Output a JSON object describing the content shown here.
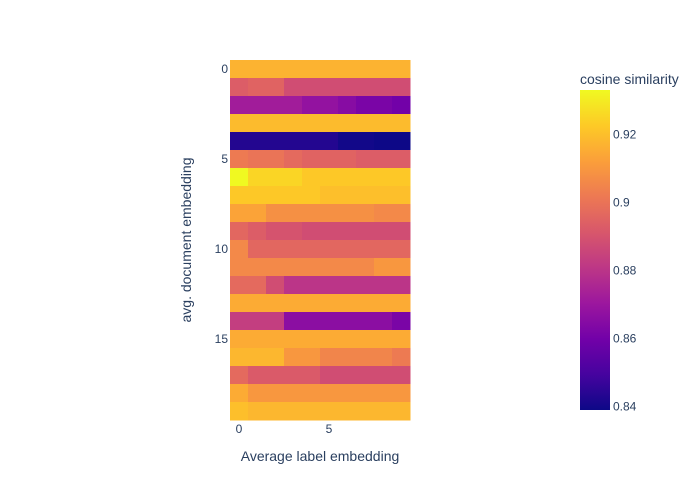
{
  "chart_data": {
    "type": "heatmap",
    "xlabel": "Average label embedding",
    "ylabel": "avg. document embedding",
    "x": [
      0,
      1,
      2,
      3,
      4,
      5,
      6,
      7,
      8,
      9
    ],
    "y": [
      0,
      1,
      2,
      3,
      4,
      5,
      6,
      7,
      8,
      9,
      10,
      11,
      12,
      13,
      14,
      15,
      16,
      17,
      18,
      19
    ],
    "x_tick_labels": [
      "0",
      "5"
    ],
    "y_tick_labels": [
      "0",
      "5",
      "10",
      "15"
    ],
    "colorbar": {
      "title": "cosine similarity",
      "range": [
        0.839,
        0.933
      ],
      "tick_labels": [
        "0.84",
        "0.86",
        "0.88",
        "0.9",
        "0.92"
      ],
      "colorscale": [
        "#0d0887",
        "#46039f",
        "#7201a8",
        "#9c179e",
        "#bd3786",
        "#d8576b",
        "#ed7953",
        "#fb9f3a",
        "#fdca26",
        "#f0f921"
      ]
    },
    "z": [
      [
        0.917,
        0.917,
        0.917,
        0.917,
        0.917,
        0.917,
        0.917,
        0.917,
        0.917,
        0.917
      ],
      [
        0.893,
        0.895,
        0.895,
        0.888,
        0.888,
        0.888,
        0.888,
        0.888,
        0.888,
        0.888
      ],
      [
        0.872,
        0.872,
        0.872,
        0.872,
        0.868,
        0.868,
        0.865,
        0.862,
        0.862,
        0.86
      ],
      [
        0.919,
        0.919,
        0.919,
        0.919,
        0.919,
        0.919,
        0.919,
        0.919,
        0.919,
        0.919
      ],
      [
        0.843,
        0.843,
        0.843,
        0.843,
        0.843,
        0.843,
        0.84,
        0.84,
        0.839,
        0.839
      ],
      [
        0.902,
        0.9,
        0.9,
        0.897,
        0.895,
        0.895,
        0.895,
        0.893,
        0.893,
        0.893
      ],
      [
        0.933,
        0.925,
        0.925,
        0.925,
        0.922,
        0.922,
        0.922,
        0.922,
        0.922,
        0.922
      ],
      [
        0.922,
        0.922,
        0.922,
        0.922,
        0.922,
        0.92,
        0.92,
        0.92,
        0.92,
        0.92
      ],
      [
        0.913,
        0.913,
        0.908,
        0.908,
        0.908,
        0.908,
        0.908,
        0.908,
        0.906,
        0.906
      ],
      [
        0.896,
        0.893,
        0.89,
        0.89,
        0.888,
        0.888,
        0.888,
        0.888,
        0.888,
        0.888
      ],
      [
        0.906,
        0.896,
        0.896,
        0.896,
        0.896,
        0.896,
        0.896,
        0.896,
        0.896,
        0.896
      ],
      [
        0.906,
        0.906,
        0.906,
        0.906,
        0.906,
        0.906,
        0.906,
        0.906,
        0.91,
        0.91
      ],
      [
        0.897,
        0.897,
        0.888,
        0.88,
        0.88,
        0.88,
        0.88,
        0.88,
        0.88,
        0.88
      ],
      [
        0.915,
        0.915,
        0.915,
        0.915,
        0.915,
        0.915,
        0.915,
        0.915,
        0.915,
        0.915
      ],
      [
        0.883,
        0.883,
        0.883,
        0.866,
        0.866,
        0.866,
        0.866,
        0.866,
        0.866,
        0.862
      ],
      [
        0.915,
        0.915,
        0.915,
        0.915,
        0.915,
        0.915,
        0.915,
        0.915,
        0.915,
        0.915
      ],
      [
        0.918,
        0.918,
        0.918,
        0.91,
        0.91,
        0.905,
        0.905,
        0.905,
        0.905,
        0.902
      ],
      [
        0.897,
        0.892,
        0.892,
        0.892,
        0.892,
        0.888,
        0.888,
        0.888,
        0.888,
        0.888
      ],
      [
        0.915,
        0.91,
        0.91,
        0.91,
        0.91,
        0.91,
        0.91,
        0.91,
        0.91,
        0.91
      ],
      [
        0.92,
        0.918,
        0.918,
        0.918,
        0.918,
        0.918,
        0.918,
        0.918,
        0.918,
        0.918
      ]
    ]
  }
}
